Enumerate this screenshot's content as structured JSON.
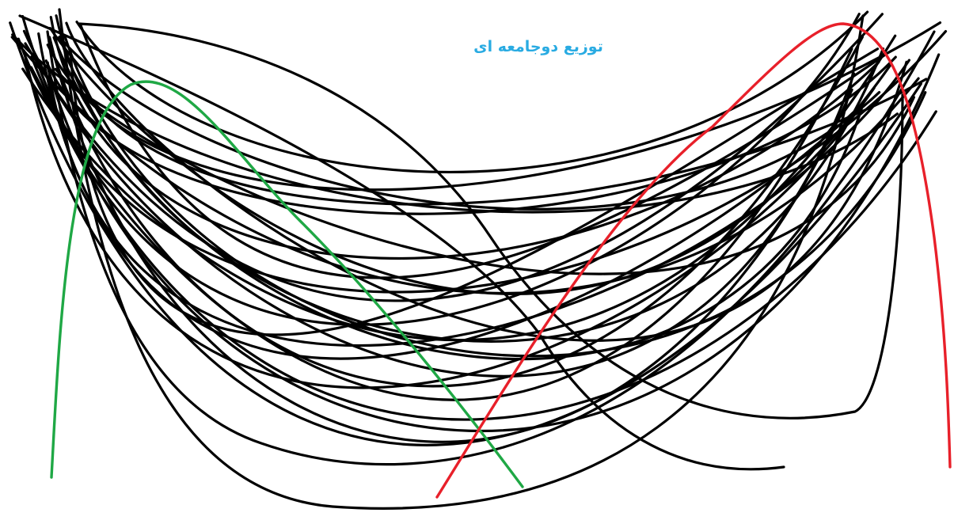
{
  "title": "توزیع دوجامعه ای",
  "colors": {
    "background": "#ffffff",
    "title": "#29abe2",
    "base_curves": "#000000",
    "left_peak_curve": "#1fa845",
    "right_peak_curve": "#e8202a"
  },
  "curves": {
    "base_count": 30,
    "highlighted": [
      "left-peak-curve",
      "right-peak-curve"
    ]
  }
}
